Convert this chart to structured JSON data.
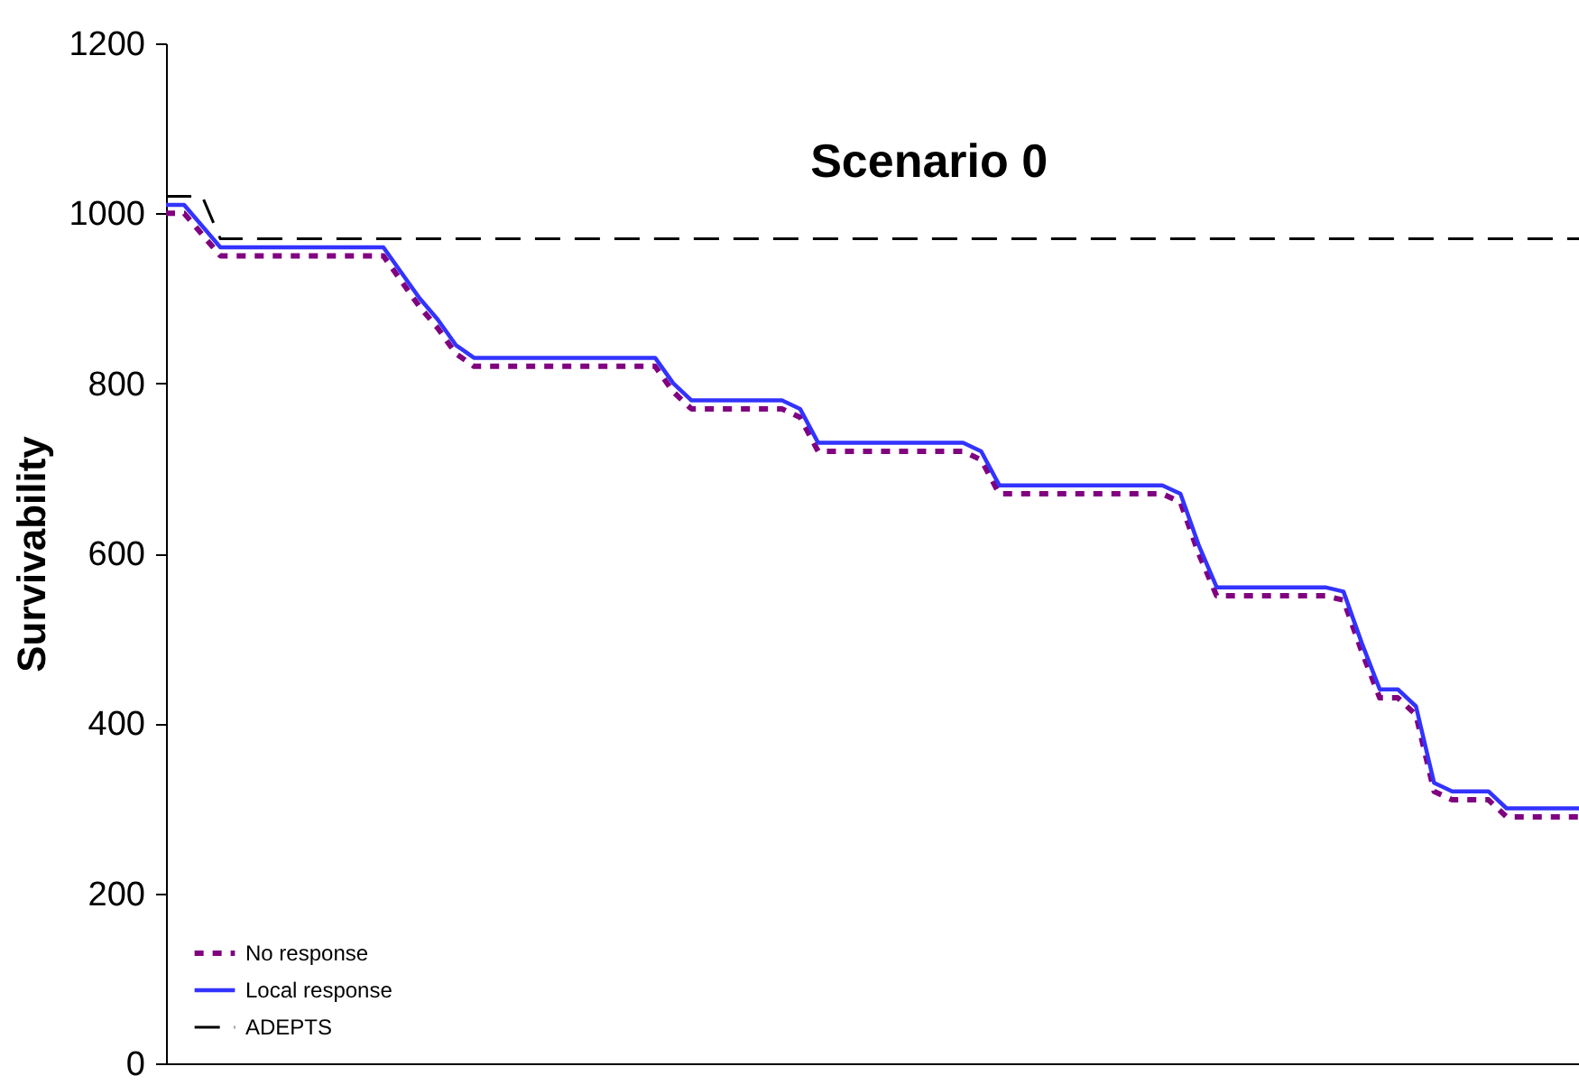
{
  "chart_data": {
    "type": "line",
    "title": "Scenario 0",
    "ylabel": "Survivability",
    "categories": [
      null,
      null,
      null,
      null,
      null,
      null,
      null,
      null,
      null,
      null,
      null,
      null,
      null,
      null,
      null,
      null,
      null,
      null,
      null,
      null,
      null,
      null,
      null,
      null,
      null,
      null,
      null,
      null,
      null,
      null,
      null,
      null,
      null,
      null,
      null,
      null,
      null,
      null,
      null,
      null,
      null,
      null,
      null,
      null,
      null,
      null,
      null,
      null,
      null,
      null,
      null,
      null,
      null,
      null,
      null,
      null,
      null,
      null,
      null,
      null,
      null,
      null,
      null,
      null,
      null,
      null,
      null,
      null,
      null,
      null,
      null,
      null,
      null,
      null,
      null,
      null,
      null,
      null,
      null
    ],
    "series": [
      {
        "name": "No response",
        "color": "#800080",
        "line_style": "dotted",
        "values": [
          1000,
          1000,
          975,
          950,
          950,
          950,
          950,
          950,
          950,
          950,
          950,
          950,
          950,
          920,
          890,
          865,
          835,
          820,
          820,
          820,
          820,
          820,
          820,
          820,
          820,
          820,
          820,
          820,
          790,
          770,
          770,
          770,
          770,
          770,
          770,
          760,
          720,
          720,
          720,
          720,
          720,
          720,
          720,
          720,
          720,
          710,
          670,
          670,
          670,
          670,
          670,
          670,
          670,
          670,
          670,
          670,
          660,
          600,
          550,
          550,
          550,
          550,
          550,
          550,
          550,
          545,
          485,
          430,
          430,
          410,
          320,
          310,
          310,
          310,
          290,
          290,
          290,
          290,
          290
        ]
      },
      {
        "name": "Local response",
        "color": "#3333ff",
        "line_style": "solid",
        "values": [
          1010,
          1010,
          985,
          960,
          960,
          960,
          960,
          960,
          960,
          960,
          960,
          960,
          960,
          930,
          900,
          875,
          845,
          830,
          830,
          830,
          830,
          830,
          830,
          830,
          830,
          830,
          830,
          830,
          800,
          780,
          780,
          780,
          780,
          780,
          780,
          770,
          730,
          730,
          730,
          730,
          730,
          730,
          730,
          730,
          730,
          720,
          680,
          680,
          680,
          680,
          680,
          680,
          680,
          680,
          680,
          680,
          670,
          610,
          560,
          560,
          560,
          560,
          560,
          560,
          560,
          555,
          495,
          440,
          440,
          420,
          330,
          320,
          320,
          320,
          300,
          300,
          300,
          300,
          300
        ]
      },
      {
        "name": "ADEPTS",
        "color": "#000000",
        "line_style": "dashed",
        "values": [
          1020,
          1020,
          1020,
          970,
          970,
          970,
          970,
          970,
          970,
          970,
          970,
          970,
          970,
          970,
          970,
          970,
          970,
          970,
          970,
          970,
          970,
          970,
          970,
          970,
          970,
          970,
          970,
          970,
          970,
          970,
          970,
          970,
          970,
          970,
          970,
          970,
          970,
          970,
          970,
          970,
          970,
          970,
          970,
          970,
          970,
          970,
          970,
          970,
          970,
          970,
          970,
          970,
          970,
          970,
          970,
          970,
          970,
          970,
          970,
          970,
          970,
          970,
          970,
          970,
          970,
          970,
          970,
          970,
          970,
          970,
          970,
          970,
          970,
          970,
          970,
          970,
          970,
          970,
          970
        ]
      }
    ],
    "ylim": [
      0,
      1200
    ],
    "yticks": [
      0,
      200,
      400,
      600,
      800,
      1000,
      1200
    ],
    "grid": false,
    "legend": "bottom left"
  }
}
